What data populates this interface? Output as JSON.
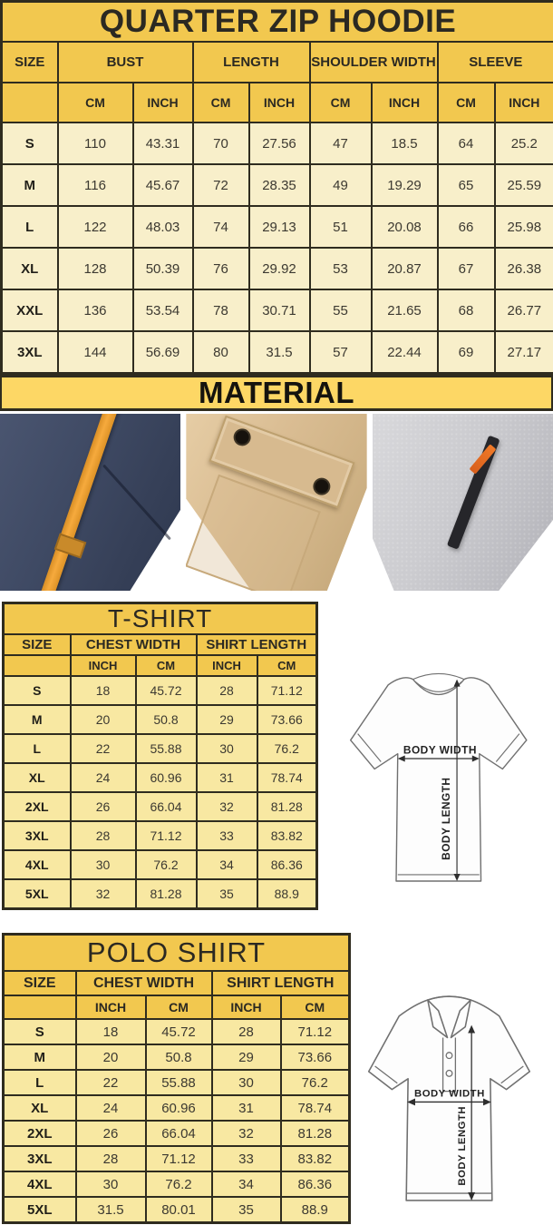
{
  "hoodie": {
    "title": "QUARTER ZIP HOODIE",
    "col_groups": [
      "SIZE",
      "BUST",
      "LENGTH",
      "SHOULDER WIDTH",
      "SLEEVE"
    ],
    "sub_headers": [
      "CM",
      "INCH",
      "CM",
      "INCH",
      "CM",
      "INCH",
      "CM",
      "INCH"
    ],
    "rows": [
      [
        "S",
        "110",
        "43.31",
        "70",
        "27.56",
        "47",
        "18.5",
        "64",
        "25.2"
      ],
      [
        "M",
        "116",
        "45.67",
        "72",
        "28.35",
        "49",
        "19.29",
        "65",
        "25.59"
      ],
      [
        "L",
        "122",
        "48.03",
        "74",
        "29.13",
        "51",
        "20.08",
        "66",
        "25.98"
      ],
      [
        "XL",
        "128",
        "50.39",
        "76",
        "29.92",
        "53",
        "20.87",
        "67",
        "26.38"
      ],
      [
        "XXL",
        "136",
        "53.54",
        "78",
        "30.71",
        "55",
        "21.65",
        "68",
        "26.77"
      ],
      [
        "3XL",
        "144",
        "56.69",
        "80",
        "31.5",
        "57",
        "22.44",
        "69",
        "27.17"
      ]
    ]
  },
  "material": {
    "title": "MATERIAL",
    "photos": [
      {
        "name": "navy-fleece-with-orange-drawstring"
      },
      {
        "name": "khaki-fabric-snap-pocket"
      },
      {
        "name": "gray-heather-fleece-zipper"
      }
    ]
  },
  "tshirt": {
    "title": "T-SHIRT",
    "col_groups": [
      "SIZE",
      "CHEST WIDTH",
      "SHIRT LENGTH"
    ],
    "sub_headers": [
      "INCH",
      "CM",
      "INCH",
      "CM"
    ],
    "rows": [
      [
        "S",
        "18",
        "45.72",
        "28",
        "71.12"
      ],
      [
        "M",
        "20",
        "50.8",
        "29",
        "73.66"
      ],
      [
        "L",
        "22",
        "55.88",
        "30",
        "76.2"
      ],
      [
        "XL",
        "24",
        "60.96",
        "31",
        "78.74"
      ],
      [
        "2XL",
        "26",
        "66.04",
        "32",
        "81.28"
      ],
      [
        "3XL",
        "28",
        "71.12",
        "33",
        "83.82"
      ],
      [
        "4XL",
        "30",
        "76.2",
        "34",
        "86.36"
      ],
      [
        "5XL",
        "32",
        "81.28",
        "35",
        "88.9"
      ]
    ],
    "diagram": {
      "width_label": "BODY WIDTH",
      "length_label": "BODY LENGTH"
    }
  },
  "polo": {
    "title": "POLO SHIRT",
    "col_groups": [
      "SIZE",
      "CHEST WIDTH",
      "SHIRT LENGTH"
    ],
    "sub_headers": [
      "INCH",
      "CM",
      "INCH",
      "CM"
    ],
    "rows": [
      [
        "S",
        "18",
        "45.72",
        "28",
        "71.12"
      ],
      [
        "M",
        "20",
        "50.8",
        "29",
        "73.66"
      ],
      [
        "L",
        "22",
        "55.88",
        "30",
        "76.2"
      ],
      [
        "XL",
        "24",
        "60.96",
        "31",
        "78.74"
      ],
      [
        "2XL",
        "26",
        "66.04",
        "32",
        "81.28"
      ],
      [
        "3XL",
        "28",
        "71.12",
        "33",
        "83.82"
      ],
      [
        "4XL",
        "30",
        "76.2",
        "34",
        "86.36"
      ],
      [
        "5XL",
        "31.5",
        "80.01",
        "35",
        "88.9"
      ]
    ],
    "diagram": {
      "width_label": "BODY WIDTH",
      "length_label": "BODY LENGTH"
    }
  },
  "colors": {
    "header_gold": "#F2C84F",
    "banner_yellow": "#FDD765",
    "row_cream": "#F8EFCA",
    "row_light_yellow": "#F8E8A2",
    "border_dark": "#2F2C1F",
    "strap_orange": "#F0A030",
    "navy_fabric": "#3C4660",
    "khaki_fabric": "#D5B88D",
    "gray_fabric": "#C7C7CB"
  }
}
